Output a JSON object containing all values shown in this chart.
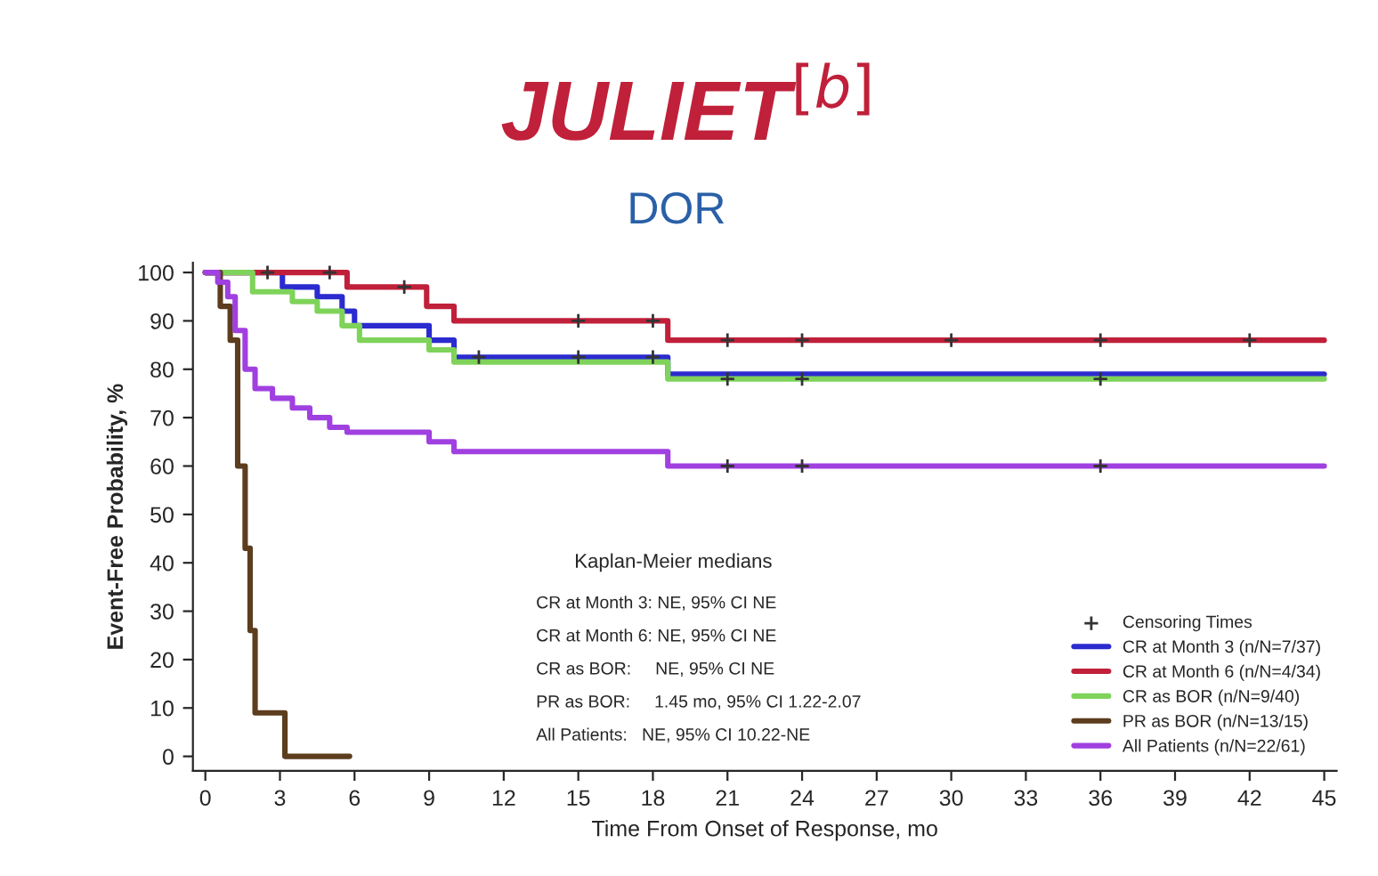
{
  "chart_data": {
    "type": "step",
    "title": "JULIET$^{[b]}$",
    "subtitle": "DOR",
    "xlabel": "Time From Onset of Response, mo",
    "ylabel": "Event-Free Probability, %",
    "xlim": [
      -0.5,
      45.5
    ],
    "ylim": [
      -3,
      102
    ],
    "xticks": [
      0,
      3,
      6,
      9,
      12,
      15,
      18,
      21,
      24,
      27,
      30,
      33,
      36,
      39,
      42,
      45
    ],
    "yticks": [
      0,
      10,
      20,
      30,
      40,
      50,
      60,
      70,
      80,
      90,
      100
    ],
    "grid": false,
    "legend": "bottom right",
    "legend_title": "Kaplan-Meier medians",
    "annotations": [
      "CR at Month 3: NE, 95% CI NE",
      "CR at Month 6: NE, 95% CI NE",
      "CR as BOR:     NE, 95% CI NE",
      "PR as BOR:     1.45 mo, 95% CI 1.22-2.07",
      "All Patients:   NE, 95% CI 10.22-NE"
    ],
    "series": [
      {
        "name": "Censoring Times",
        "type": "scatter",
        "marker": "cross",
        "color": "#333333",
        "x": [
          2.5,
          5,
          8,
          15,
          18,
          21,
          24,
          30,
          36,
          42,
          11,
          15,
          18,
          21,
          24,
          36,
          21,
          24,
          36
        ],
        "values": [
          100,
          100,
          97,
          90,
          90,
          86,
          86,
          86,
          86,
          86,
          82.5,
          82.5,
          82.5,
          78,
          78,
          78,
          60,
          60,
          60
        ]
      },
      {
        "name": "CR at Month 3 (n/N=7/37)",
        "color": "#2b2bd0",
        "x": [
          0,
          3.1,
          4.5,
          5.5,
          6,
          9,
          10,
          18.6,
          45
        ],
        "values": [
          100,
          97,
          95,
          92,
          89,
          86,
          82.5,
          79,
          79
        ]
      },
      {
        "name": "CR at Month 6 (n/N=4/34)",
        "color": "#c0203a",
        "x": [
          0,
          5.7,
          8.9,
          10,
          18.6,
          45
        ],
        "values": [
          100,
          97,
          93,
          90,
          86,
          86
        ]
      },
      {
        "name": "CR as BOR (n/N=9/40)",
        "color": "#7fd35a",
        "x": [
          0,
          1.9,
          3.5,
          4.5,
          5.5,
          6.2,
          9,
          10,
          18.6,
          45
        ],
        "values": [
          100,
          96,
          94,
          92,
          89,
          86,
          84,
          81.5,
          78,
          78
        ]
      },
      {
        "name": "PR as BOR (n/N=13/15)",
        "color": "#5c3d1e",
        "x": [
          0,
          0.6,
          1,
          1.3,
          1.6,
          1.8,
          2,
          3.2,
          5.8
        ],
        "values": [
          100,
          93,
          86,
          60,
          43,
          26,
          9,
          0,
          0
        ]
      },
      {
        "name": "All Patients (n/N=22/61)",
        "color": "#a040e0",
        "x": [
          0,
          0.5,
          0.9,
          1.2,
          1.6,
          2,
          2.7,
          3.5,
          4.2,
          5,
          5.7,
          9,
          10,
          18.6,
          45
        ],
        "values": [
          100,
          98,
          95,
          88,
          80,
          76,
          74,
          72,
          70,
          68,
          67,
          65,
          63,
          60,
          60
        ]
      }
    ]
  }
}
